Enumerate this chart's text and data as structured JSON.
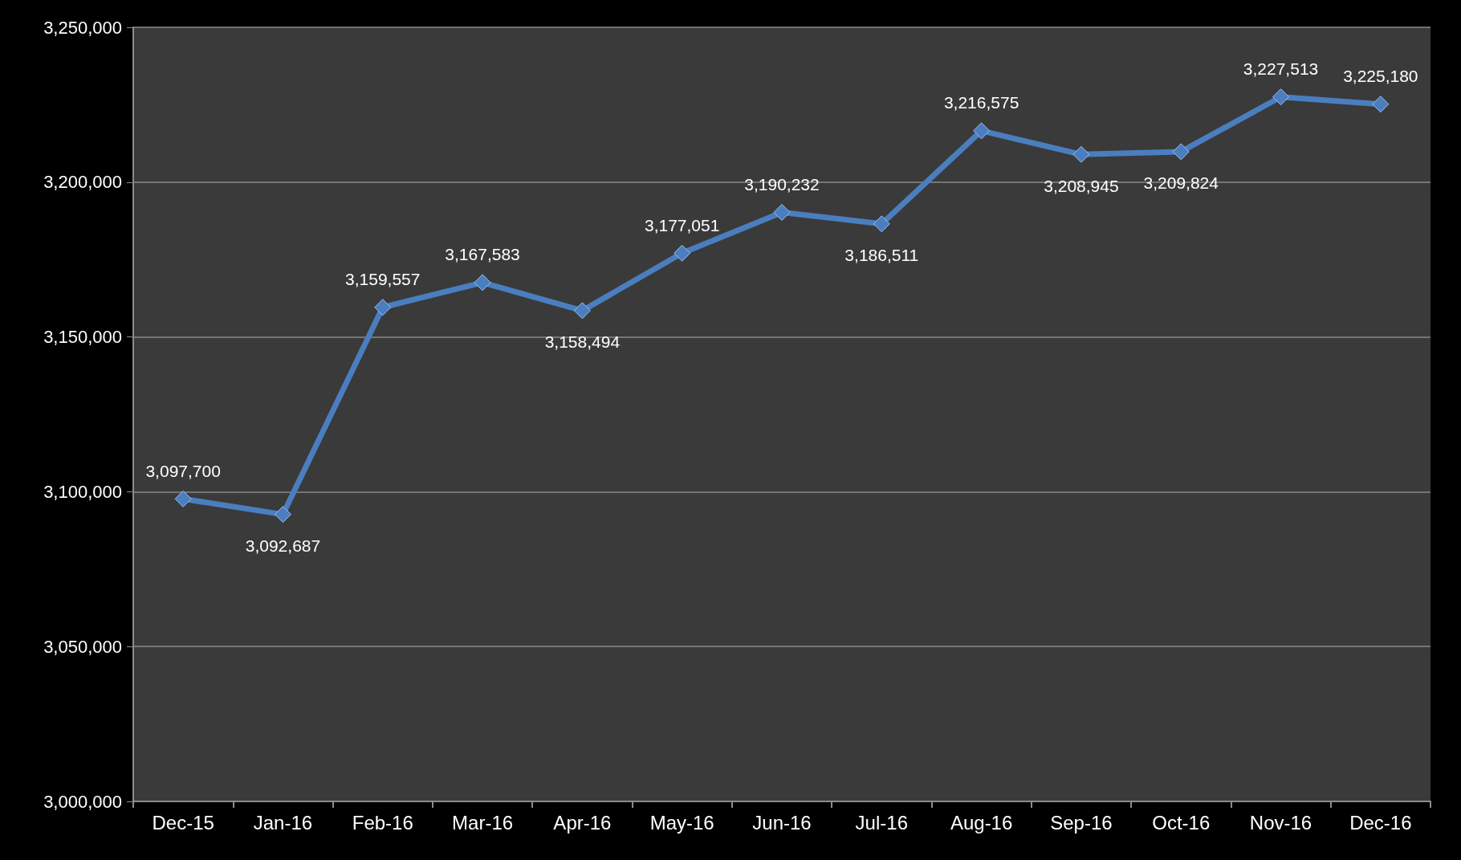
{
  "chart_data": {
    "type": "line",
    "categories": [
      "Dec-15",
      "Jan-16",
      "Feb-16",
      "Mar-16",
      "Apr-16",
      "May-16",
      "Jun-16",
      "Jul-16",
      "Aug-16",
      "Sep-16",
      "Oct-16",
      "Nov-16",
      "Dec-16"
    ],
    "series": [
      {
        "color": "#4a7ebf",
        "values": [
          3097700,
          3092687,
          3159557,
          3167583,
          3158494,
          3177051,
          3190232,
          3186511,
          3216575,
          3208945,
          3209824,
          3227513,
          3225180
        ],
        "value_labels": [
          "3,097,700",
          "3,092,687",
          "3,159,557",
          "3,167,583",
          "3,158,494",
          "3,177,051",
          "3,190,232",
          "3,186,511",
          "3,216,575",
          "3,208,945",
          "3,209,824",
          "3,227,513",
          "3,225,180"
        ]
      }
    ],
    "ylim": [
      3000000,
      3250000
    ],
    "yticks": [
      {
        "value": 3000000,
        "label": "3,000,000"
      },
      {
        "value": 3050000,
        "label": "3,050,000"
      },
      {
        "value": 3100000,
        "label": "3,100,000"
      },
      {
        "value": 3150000,
        "label": "3,150,000"
      },
      {
        "value": 3200000,
        "label": "3,200,000"
      },
      {
        "value": 3250000,
        "label": "3,250,000"
      }
    ],
    "grid": "y",
    "marker": "diamond",
    "line_style": "solid"
  }
}
